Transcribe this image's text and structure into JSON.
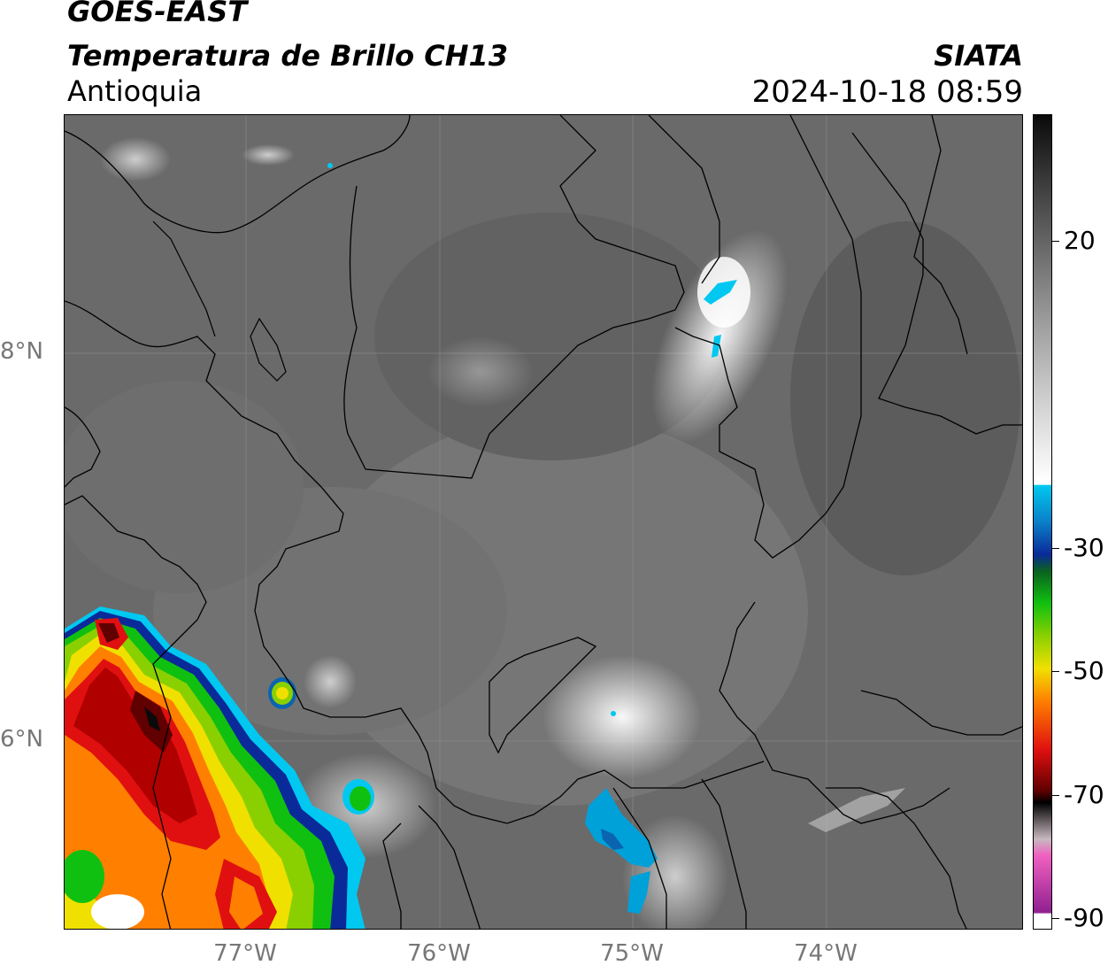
{
  "header": {
    "satellite": "GOES-EAST",
    "product": "Temperatura de Brillo CH13",
    "region": "Antioquia",
    "organization": "SIATA",
    "datetime": "2024-10-18 08:59"
  },
  "axes": {
    "lat_labels": [
      "8°N",
      "6°N"
    ],
    "lon_labels": [
      "77°W",
      "76°W",
      "75°W",
      "74°W"
    ]
  },
  "colorbar": {
    "tick_labels": [
      "20",
      "-30",
      "-50",
      "-70",
      "-90"
    ],
    "colors": {
      "warm_gray_top": "#0a0a0a",
      "mid_gray": "#9a9a9a",
      "white": "#ffffff",
      "cyan": "#00c8f0",
      "blue": "#0a2a9a",
      "green": "#10c010",
      "yellow": "#f0e000",
      "orange": "#ff8000",
      "red": "#e01010",
      "darkred": "#600000",
      "black": "#000000",
      "pink": "#f060c0",
      "purple": "#902090"
    }
  },
  "map_colors": {
    "background_gray": "#6a6a6a",
    "light_cloud": "#d8d8d8",
    "border_line": "#000000",
    "grid_line": "#8c8c8c"
  }
}
